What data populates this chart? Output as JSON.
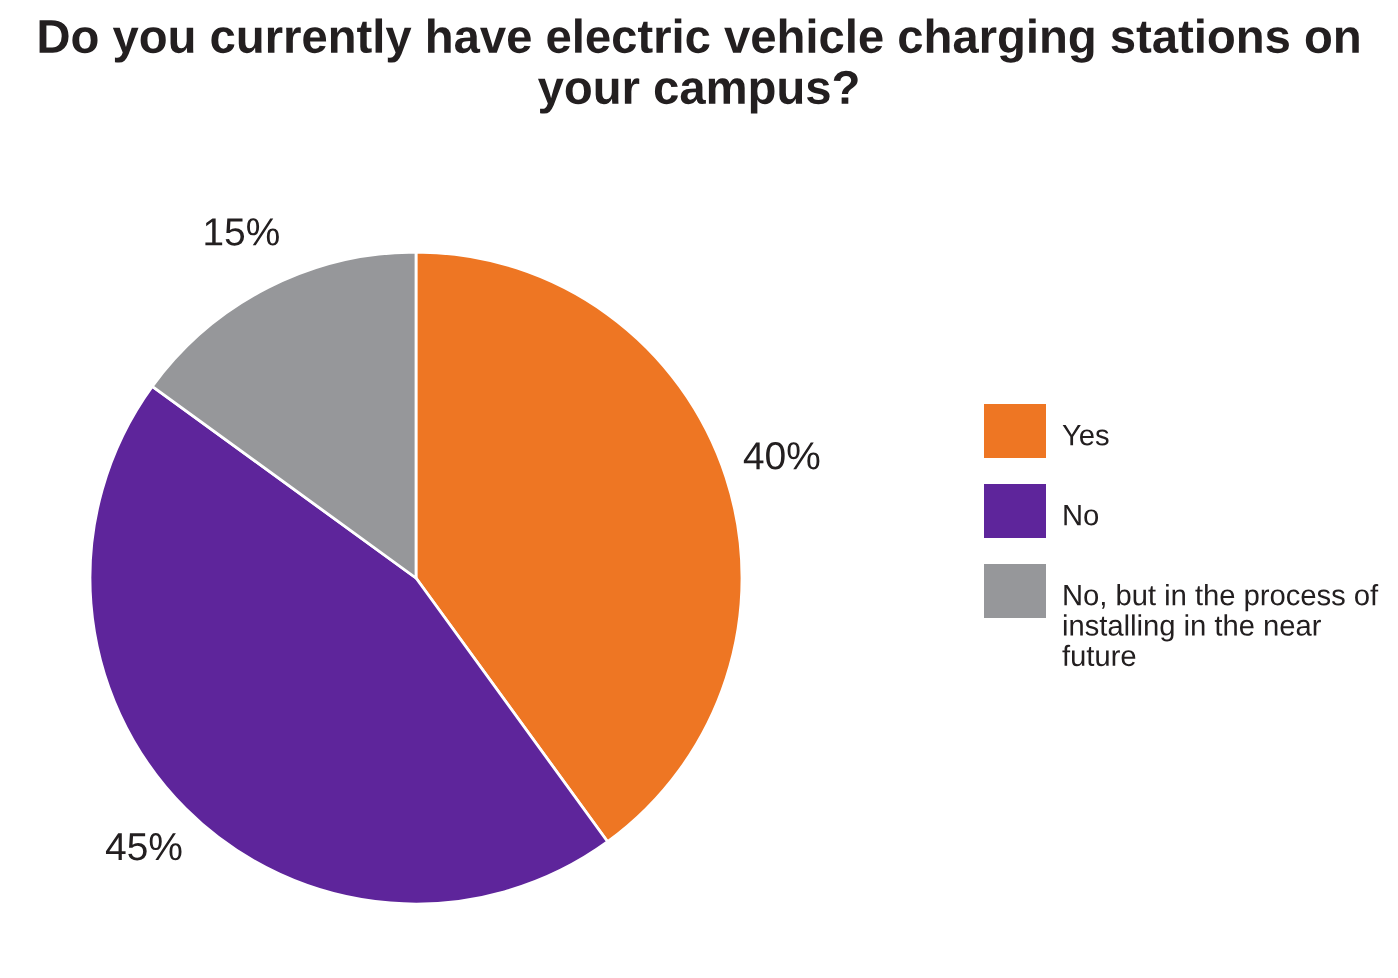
{
  "chart_data": {
    "type": "pie",
    "title": "Do you currently have electric vehicle charging stations on your campus?",
    "categories": [
      "Yes",
      "No",
      "No, but in the process of installing in the near future"
    ],
    "values": [
      40,
      45,
      15
    ],
    "colors": [
      "#ee7623",
      "#5e259b",
      "#96979a"
    ],
    "value_labels": [
      "40%",
      "45%",
      "15%"
    ],
    "legend": "right"
  }
}
